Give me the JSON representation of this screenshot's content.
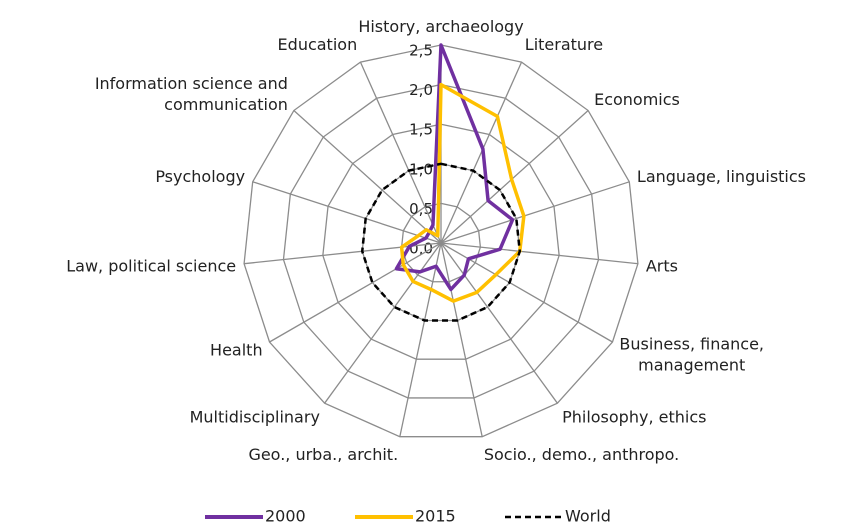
{
  "chart_data": {
    "type": "radar",
    "categories": [
      "History, archaeology",
      "Literature",
      "Economics",
      "Language, linguistics",
      "Arts",
      "Business, finance,\nmanagement",
      "Philosophy, ethics",
      "Socio., demo., anthropo.",
      "Geo., urba., archit.",
      "Multidisciplinary",
      "Health",
      "Law, political science",
      "Psychology",
      "Information science and\ncommunication",
      "Education"
    ],
    "series": [
      {
        "name": "2000",
        "color": "#7030a0",
        "dash": false,
        "values": [
          2.5,
          1.3,
          0.8,
          0.95,
          0.75,
          0.4,
          0.5,
          0.6,
          0.3,
          0.45,
          0.65,
          0.4,
          0.2,
          0.2,
          0.25
        ]
      },
      {
        "name": "2015",
        "color": "#ffc000",
        "dash": false,
        "values": [
          2.0,
          1.75,
          1.2,
          1.1,
          1.0,
          0.8,
          0.77,
          0.75,
          0.6,
          0.6,
          0.55,
          0.5,
          0.3,
          0.25,
          0.1
        ]
      },
      {
        "name": "World",
        "color": "#000000",
        "dash": true,
        "values": [
          1,
          1,
          1,
          1,
          1,
          1,
          1,
          1,
          1,
          1,
          1,
          1,
          1,
          1,
          1
        ]
      }
    ],
    "ylim": [
      0,
      2.5
    ],
    "yticks": [
      {
        "value": 0,
        "label": "0,0"
      },
      {
        "value": 0.5,
        "label": "0,5"
      },
      {
        "value": 1,
        "label": "1,0"
      },
      {
        "value": 1.5,
        "label": "1,5"
      },
      {
        "value": 2,
        "label": "2,0"
      },
      {
        "value": 2.5,
        "label": "2,5"
      }
    ],
    "legend": "bottom"
  }
}
